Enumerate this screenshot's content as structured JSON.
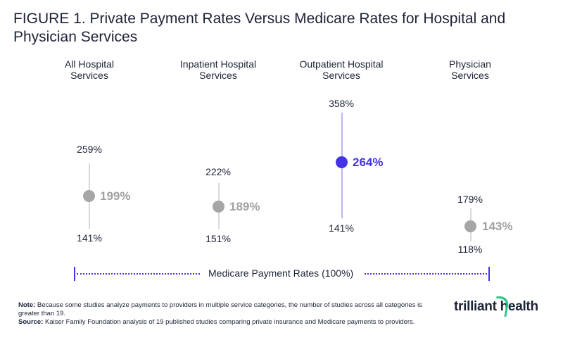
{
  "title": "FIGURE 1. Private Payment Rates Versus Medicare Rates for Hospital and Physician Services",
  "chart_data": {
    "type": "range-dot",
    "categories": [
      "All Hospital\nServices",
      "Inpatient Hospital\nServices",
      "Outpatient Hospital\nServices",
      "Physician\nServices"
    ],
    "series": [
      {
        "high": 259,
        "mid": 199,
        "low": 141,
        "high_label": "259%",
        "mid_label": "199%",
        "low_label": "141%",
        "highlight": false
      },
      {
        "high": 222,
        "mid": 189,
        "low": 151,
        "high_label": "222%",
        "mid_label": "189%",
        "low_label": "151%",
        "highlight": false
      },
      {
        "high": 358,
        "mid": 264,
        "low": 141,
        "high_label": "358%",
        "mid_label": "264%",
        "low_label": "141%",
        "highlight": true
      },
      {
        "high": 179,
        "mid": 143,
        "low": 118,
        "high_label": "179%",
        "mid_label": "143%",
        "low_label": "118%",
        "highlight": false
      }
    ],
    "baseline_label": "Medicare Payment Rates (100%)",
    "colors": {
      "highlight": "#4433e6",
      "default": "#a6a6a6",
      "text": "#1c2336"
    }
  },
  "footer": {
    "note_label": "Note:",
    "note_text": " Because some studies analyze payments to providers in multiple service categories, the number of studies across all categories is greater than 19.",
    "source_label": "Source:",
    "source_text": " Kaiser Family Foundation analysis of 19 published studies comparing private insurance and Medicare payments to providers."
  },
  "logo": "trilliant health"
}
